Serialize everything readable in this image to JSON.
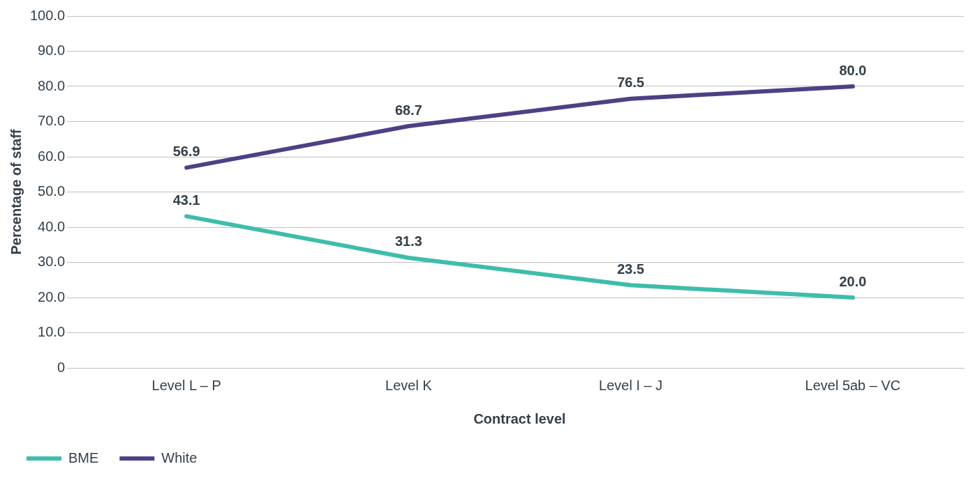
{
  "chart_data": {
    "type": "line",
    "xlabel": "Contract level",
    "ylabel": "Percentage of staff",
    "categories": [
      "Level L – P",
      "Level K",
      "Level I – J",
      "Level 5ab – VC"
    ],
    "series": [
      {
        "name": "BME",
        "color": "#3dbdaa",
        "values": [
          43.1,
          31.3,
          23.5,
          20.0
        ],
        "value_labels": [
          "43.1",
          "31.3",
          "23.5",
          "20.0"
        ]
      },
      {
        "name": "White",
        "color": "#4f3f84",
        "values": [
          56.9,
          68.7,
          76.5,
          80.0
        ],
        "value_labels": [
          "56.9",
          "68.7",
          "76.5",
          "80.0"
        ]
      }
    ],
    "ylim": [
      0,
      100
    ],
    "yticks": [
      {
        "value": 0,
        "label": "0"
      },
      {
        "value": 10,
        "label": "10.0"
      },
      {
        "value": 20,
        "label": "20.0"
      },
      {
        "value": 30,
        "label": "30.0"
      },
      {
        "value": 40,
        "label": "40.0"
      },
      {
        "value": 50,
        "label": "50.0"
      },
      {
        "value": 60,
        "label": "60.0"
      },
      {
        "value": 70,
        "label": "70.0"
      },
      {
        "value": 80,
        "label": "80.0"
      },
      {
        "value": 90,
        "label": "90.0"
      },
      {
        "value": 100,
        "label": "100.0"
      }
    ],
    "grid": "y",
    "legend": "bottom left",
    "marker": "none",
    "line_style": "solid"
  }
}
